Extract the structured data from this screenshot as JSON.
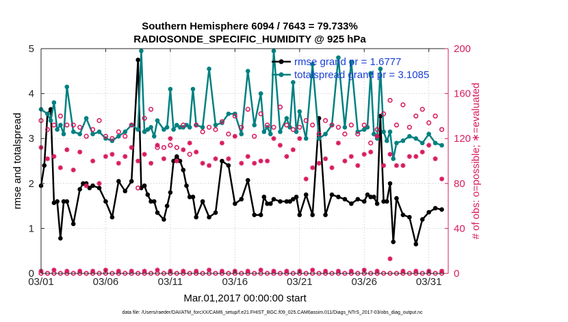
{
  "chart_data": {
    "type": "line",
    "title_line1": "Southern Hemisphere 6094 / 7643 = 79.733%",
    "title_line2": "RADIOSONDE_SPECIFIC_HUMIDITY @ 925 hPa",
    "xlabel": "Mar.01,2017 00:00:00 start",
    "ylabel_left": "rmse and totalspread",
    "ylabel_right": "# of obs: o=possible; ∗=evaluated",
    "footer": "data file: /Users/raeder/DAI/ATM_forcXX/CAM6_setup/f.e21.FHIST_BGC.f09_025.CAM6assim.011/Diags_NTrS_2017-03/obs_diag_output.nc",
    "xlim": [
      0,
      31.5
    ],
    "ylim_left": [
      0,
      5
    ],
    "ylim_right": [
      0,
      200
    ],
    "x_ticks": [
      0,
      5,
      10,
      15,
      20,
      25,
      30
    ],
    "x_tick_labels": [
      "03/01",
      "03/06",
      "03/11",
      "03/16",
      "03/21",
      "03/26",
      "03/31"
    ],
    "y_left_ticks": [
      "0",
      "1",
      "2",
      "3",
      "4",
      "5"
    ],
    "y_right_ticks": [
      "0",
      "40",
      "80",
      "120",
      "160",
      "200"
    ],
    "legend": [
      {
        "label": "rmse grand pr = 1.6777",
        "color": "#000000"
      },
      {
        "label": "totalspread grand pr = 3.1085",
        "color": "#008080"
      }
    ],
    "colors": {
      "rmse": "#000000",
      "spread": "#008080",
      "obs": "#d81b60",
      "axis_right": "#d81b60"
    },
    "series": [
      {
        "name": "rmse",
        "axis": "left",
        "x": [
          0,
          0.25,
          0.5,
          0.75,
          1,
          1.25,
          1.5,
          1.75,
          2,
          2.5,
          3,
          3.25,
          3.5,
          3.75,
          4,
          4.5,
          5,
          5.5,
          6,
          6.5,
          7,
          7.5,
          7.75,
          8,
          8.25,
          8.5,
          8.75,
          9,
          9.5,
          9.75,
          10,
          10.25,
          10.5,
          10.75,
          11,
          11.25,
          11.5,
          11.75,
          12,
          12.5,
          13,
          13.5,
          14,
          14.5,
          15,
          15.5,
          16,
          16.5,
          17,
          17.25,
          17.5,
          17.75,
          18,
          18.5,
          19,
          19.25,
          19.5,
          19.75,
          20,
          20.5,
          21,
          21.5,
          22,
          22.5,
          23,
          23.5,
          24,
          24.5,
          25,
          25.25,
          25.5,
          25.75,
          26,
          26.25,
          26.5,
          26.75,
          27,
          27.25,
          27.5,
          28,
          28.5,
          29,
          29.5,
          30,
          30.5,
          31
        ],
        "values": [
          1.95,
          2.4,
          3.55,
          3.65,
          1.57,
          1.6,
          0.78,
          1.6,
          1.6,
          1.1,
          1.87,
          2.0,
          2.0,
          1.9,
          1.95,
          1.9,
          1.6,
          1.25,
          2.05,
          1.83,
          2.05,
          4.75,
          1.9,
          1.95,
          1.75,
          1.6,
          1.6,
          1.35,
          1.2,
          1.5,
          1.8,
          2.5,
          2.6,
          2.5,
          2.3,
          1.95,
          1.7,
          1.7,
          1.25,
          1.6,
          1.25,
          1.35,
          2.5,
          2.4,
          1.55,
          1.65,
          2.07,
          1.3,
          1.3,
          1.7,
          1.55,
          1.55,
          1.65,
          1.6,
          1.6,
          1.6,
          1.65,
          1.7,
          1.3,
          1.75,
          1.3,
          3.45,
          1.3,
          1.75,
          1.7,
          1.65,
          1.55,
          1.65,
          1.6,
          1.75,
          1.7,
          1.7,
          1.55,
          3.5,
          1.6,
          1.6,
          2.0,
          0.7,
          1.67,
          1.3,
          1.25,
          0.65,
          1.2,
          1.36,
          1.45,
          1.42
        ]
      },
      {
        "name": "totalspread",
        "axis": "left",
        "x": [
          0,
          0.5,
          0.75,
          1,
          1.25,
          1.5,
          1.75,
          2,
          2.5,
          3,
          3.5,
          4,
          4.5,
          5,
          5.5,
          6,
          6.5,
          7,
          7.5,
          7.75,
          8,
          8.25,
          8.5,
          8.75,
          9,
          9.5,
          9.75,
          10,
          10.25,
          10.5,
          10.75,
          11,
          11.25,
          11.5,
          11.75,
          12,
          12.5,
          13,
          13.5,
          14,
          14.5,
          15,
          15.5,
          16,
          16.5,
          17,
          17.25,
          17.5,
          17.75,
          18,
          18.5,
          19,
          19.25,
          19.5,
          19.75,
          20,
          20.5,
          21,
          21.5,
          22,
          22.5,
          23,
          23.5,
          24,
          24.5,
          25,
          25.25,
          25.5,
          25.75,
          26,
          26.25,
          26.5,
          26.75,
          27,
          27.25,
          27.5,
          28,
          28.5,
          29,
          29.5,
          30,
          30.5,
          31
        ],
        "values": [
          3.65,
          3.55,
          3.4,
          3.8,
          3.2,
          3.3,
          3.1,
          4.15,
          3.15,
          3.1,
          3.45,
          3.1,
          3.15,
          3.0,
          2.95,
          3.05,
          3.15,
          3.3,
          3.2,
          4.95,
          3.15,
          3.2,
          3.25,
          3.05,
          3.4,
          3.2,
          3.25,
          4.1,
          3.2,
          3.3,
          3.25,
          3.25,
          3.3,
          3.25,
          4.1,
          3.3,
          3.25,
          4.55,
          3.3,
          3.35,
          3.55,
          3.55,
          3.1,
          4.5,
          3.3,
          4.0,
          3.15,
          3.25,
          3.1,
          4.95,
          3.15,
          3.45,
          3.25,
          4.25,
          3.15,
          3.6,
          3.0,
          4.65,
          3.0,
          3.1,
          3.3,
          4.8,
          3.25,
          4.7,
          3.15,
          3.2,
          3.25,
          4.45,
          3.1,
          3.0,
          4.55,
          3.15,
          2.95,
          3.15,
          2.55,
          2.9,
          2.95,
          3.05,
          3.0,
          2.9,
          3.1,
          2.9,
          2.85
        ]
      },
      {
        "name": "obs_possible",
        "axis": "right",
        "x": [
          0,
          0.5,
          1,
          1.5,
          2,
          2.5,
          3,
          3.5,
          4,
          4.5,
          5,
          5.5,
          6,
          6.5,
          7,
          7.5,
          8,
          8.5,
          9,
          9.5,
          10,
          10.5,
          11,
          11.5,
          12,
          12.5,
          13,
          13.5,
          14,
          14.5,
          15,
          15.5,
          16,
          16.5,
          17,
          17.5,
          18,
          18.5,
          19,
          19.5,
          20,
          20.5,
          21,
          21.5,
          22,
          22.5,
          23,
          23.5,
          24,
          24.5,
          25,
          25.5,
          26,
          26.5,
          27,
          27.5,
          28,
          28.5,
          29,
          29.5,
          30,
          30.5,
          31
        ],
        "values": [
          136,
          128,
          132,
          140,
          132,
          132,
          130,
          122,
          128,
          136,
          122,
          120,
          126,
          122,
          132,
          76,
          138,
          146,
          112,
          112,
          114,
          112,
          132,
          106,
          132,
          126,
          130,
          128,
          135,
          124,
          140,
          130,
          146,
          122,
          142,
          132,
          130,
          148,
          132,
          128,
          130,
          136,
          132,
          124,
          136,
          132,
          130,
          124,
          132,
          124,
          132,
          116,
          128,
          142,
          154,
          132,
          150,
          130,
          140,
          146,
          134,
          140,
          128
        ]
      },
      {
        "name": "obs_evaluated",
        "axis": "right",
        "x": [
          0,
          0.5,
          1,
          1.5,
          2,
          2.5,
          3,
          3.5,
          4,
          4.5,
          5,
          5.5,
          6,
          6.5,
          7,
          7.5,
          8,
          8.5,
          9,
          9.5,
          10,
          10.5,
          11,
          11.5,
          12,
          12.5,
          13,
          13.5,
          14,
          14.5,
          15,
          15.5,
          16,
          16.5,
          17,
          17.5,
          18,
          18.5,
          19,
          19.5,
          20,
          20.5,
          21,
          21.5,
          22,
          22.5,
          23,
          23.5,
          24,
          24.5,
          25,
          25.5,
          26,
          26.5,
          27,
          27.5,
          28,
          28.5,
          29,
          29.5,
          30,
          30.5,
          31
        ],
        "values": [
          112,
          102,
          104,
          94,
          110,
          92,
          108,
          78,
          100,
          80,
          104,
          106,
          98,
          104,
          112,
          100,
          106,
          98,
          114,
          102,
          120,
          100,
          110,
          116,
          108,
          98,
          96,
          102,
          116,
          102,
          122,
          98,
          104,
          98,
          100,
          100,
          120,
          114,
          104,
          110,
          120,
          84,
          94,
          98,
          102,
          94,
          116,
          100,
          104,
          96,
          106,
          108,
          122,
          96,
          106,
          96,
          96,
          104,
          104,
          108,
          114,
          102,
          84
        ]
      },
      {
        "name": "obs_possible_floor",
        "axis": "right",
        "x": [
          0,
          0.5,
          1,
          1.5,
          2,
          2.5,
          3,
          3.5,
          4,
          4.5,
          5,
          5.5,
          6,
          6.5,
          7,
          7.5,
          8,
          8.5,
          9,
          9.5,
          10,
          10.5,
          11,
          11.5,
          12,
          12.5,
          13,
          13.5,
          14,
          14.5,
          15,
          15.5,
          16,
          16.5,
          17,
          17.5,
          18,
          18.5,
          19,
          19.5,
          20,
          20.5,
          21,
          21.5,
          22,
          22.5,
          23,
          23.5,
          24,
          24.5,
          25,
          25.5,
          26,
          26.5,
          27,
          27.5,
          28,
          28.5,
          29,
          29.5,
          30,
          30.5,
          31
        ],
        "values": [
          0,
          0,
          0,
          0,
          0,
          0,
          0,
          0,
          0,
          0,
          0,
          0,
          0,
          0,
          0,
          0,
          0,
          0,
          0,
          0,
          0,
          0,
          0,
          0,
          0,
          0,
          0,
          0,
          0,
          0,
          0,
          0,
          0,
          0,
          0,
          0,
          0,
          0,
          0,
          0,
          0,
          0,
          0,
          0,
          0,
          0,
          0,
          0,
          0,
          0,
          0,
          0,
          0,
          0,
          0,
          0,
          0,
          0,
          0,
          0,
          0,
          0,
          0
        ]
      },
      {
        "name": "obs_evaluated_floor",
        "axis": "right",
        "x": [
          0,
          1,
          2,
          3,
          4,
          5,
          6,
          7,
          8,
          9,
          10,
          11,
          12,
          13,
          14,
          15,
          16,
          17,
          18,
          19,
          20,
          21,
          22,
          23,
          24,
          25,
          26,
          27,
          28,
          29,
          30,
          31
        ],
        "values": [
          2,
          3,
          2,
          2,
          2,
          3,
          2,
          2,
          2,
          3,
          2,
          2,
          2,
          3,
          2,
          2,
          2,
          3,
          2,
          2,
          2,
          3,
          2,
          2,
          2,
          3,
          2,
          13,
          2,
          2,
          2,
          2
        ]
      }
    ]
  }
}
